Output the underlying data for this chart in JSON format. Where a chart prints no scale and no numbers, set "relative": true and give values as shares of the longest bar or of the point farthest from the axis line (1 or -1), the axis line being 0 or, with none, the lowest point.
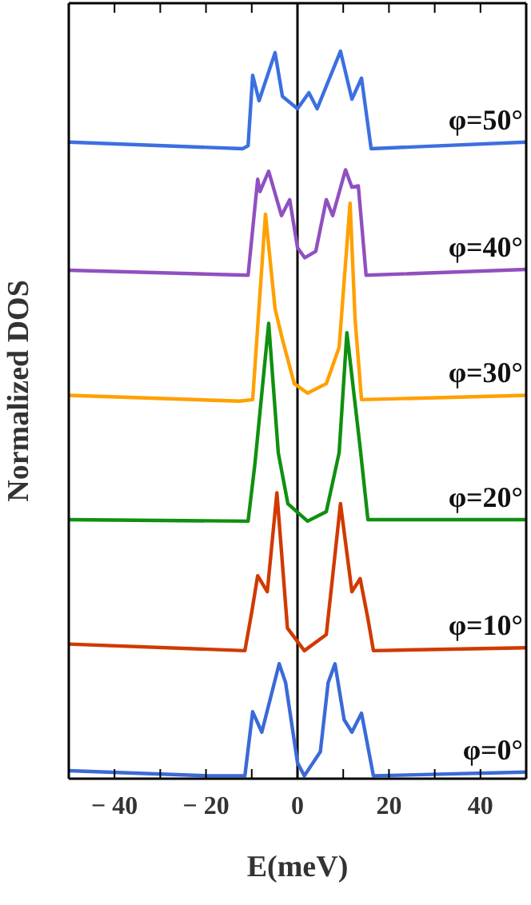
{
  "chart_data": {
    "type": "line",
    "relative": true,
    "xlabel": "E(meV)",
    "ylabel": "Normalized DOS",
    "xlim": [
      -50,
      50
    ],
    "xticks": [
      -40,
      {
        "value": -30,
        "label": null
      },
      -20,
      {
        "value": -10,
        "label": null
      },
      0,
      {
        "value": 10,
        "label": null
      },
      20,
      {
        "value": 30,
        "label": null
      },
      40
    ],
    "marker": "none",
    "line_style": "solid",
    "ref_lines": [
      {
        "axis": "x",
        "value": 0,
        "label": null,
        "color": "#000000"
      }
    ],
    "series": [
      {
        "name": "φ=50°",
        "color": "#3c6fe0",
        "x": [
          -50,
          -12,
          -10.8,
          -9.8,
          -8.4,
          -4.9,
          -3.3,
          0,
          2.5,
          4.3,
          9.4,
          11.9,
          14,
          16.1,
          50
        ],
        "values": [
          0.875,
          0.866,
          0.87,
          0.967,
          0.932,
          0.998,
          0.938,
          0.921,
          0.943,
          0.921,
          1,
          0.934,
          0.963,
          0.866,
          0.875
        ]
      },
      {
        "name": "φ=40°",
        "color": "#9050c0",
        "x": [
          -50,
          -10.8,
          -8.7,
          -8.2,
          -6.3,
          -3.5,
          -1.7,
          0,
          1.6,
          4,
          6.3,
          7.7,
          10.5,
          11.9,
          13.3,
          15,
          50
        ],
        "values": [
          0.699,
          0.692,
          0.824,
          0.807,
          0.835,
          0.774,
          0.796,
          0.73,
          0.716,
          0.725,
          0.796,
          0.774,
          0.837,
          0.813,
          0.815,
          0.692,
          0.7
        ]
      },
      {
        "name": "φ=30°",
        "color": "#ffa000",
        "x": [
          -50,
          -12.7,
          -9.8,
          -7,
          -4.9,
          -3.3,
          -0.7,
          2.2,
          6.3,
          9.1,
          11.5,
          12.6,
          14,
          50
        ],
        "values": [
          0.527,
          0.519,
          0.521,
          0.776,
          0.646,
          0.604,
          0.543,
          0.53,
          0.543,
          0.593,
          0.791,
          0.631,
          0.521,
          0.527
        ]
      },
      {
        "name": "φ=20°",
        "color": "#109010",
        "x": [
          -50,
          -10.8,
          -9.3,
          -6.3,
          -4.2,
          -2.1,
          2.2,
          6.3,
          9.1,
          10.8,
          13.7,
          15.4,
          50
        ],
        "values": [
          0.356,
          0.354,
          0.433,
          0.626,
          0.448,
          0.378,
          0.354,
          0.367,
          0.448,
          0.613,
          0.455,
          0.356,
          0.356
        ]
      },
      {
        "name": "φ=10°",
        "color": "#d03a00",
        "x": [
          -50,
          -11.5,
          -10,
          -8.7,
          -6.6,
          -4.5,
          -2.2,
          1.5,
          6.3,
          7.7,
          9.4,
          11.9,
          13.7,
          15.4,
          16.6,
          50
        ],
        "values": [
          0.185,
          0.176,
          0.229,
          0.279,
          0.257,
          0.393,
          0.207,
          0.176,
          0.198,
          0.279,
          0.378,
          0.257,
          0.275,
          0.22,
          0.176,
          0.18
        ]
      },
      {
        "name": "φ=0°",
        "color": "#3a6ad8",
        "x": [
          -50,
          -20,
          -11.5,
          -9.8,
          -7.8,
          -4,
          -2.6,
          0,
          1.5,
          5,
          6.7,
          8.2,
          10.2,
          11.9,
          14,
          16.6,
          50
        ],
        "values": [
          0.011,
          0.004,
          0.004,
          0.092,
          0.064,
          0.158,
          0.132,
          0.022,
          0.004,
          0.037,
          0.132,
          0.158,
          0.081,
          0.064,
          0.09,
          0.004,
          0.009
        ]
      }
    ]
  }
}
